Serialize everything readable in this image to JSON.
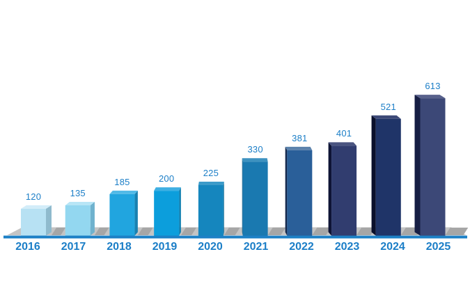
{
  "chart_data": {
    "type": "bar",
    "style": "3d-perspective-column",
    "title": "",
    "xlabel": "",
    "ylabel": "",
    "categories": [
      "2016",
      "2017",
      "2018",
      "2019",
      "2020",
      "2021",
      "2022",
      "2023",
      "2024",
      "2025"
    ],
    "values": [
      120,
      135,
      185,
      200,
      225,
      330,
      381,
      401,
      521,
      613
    ],
    "ylim": [
      0,
      650
    ],
    "grid": false,
    "legend": "none",
    "data_labels_shown": true,
    "label_color": "#1B7EC7",
    "tick_label_color": "#1B7EC7",
    "axis_line_color": "#1C80C6",
    "floor_color": "#C4C4C4",
    "shadow_color": "#A6A6A6",
    "background_color": "#FFFFFF",
    "bar_colors": [
      {
        "front": "#B7E1F3",
        "top": "#D3EDF9",
        "side": "#8FBACD"
      },
      {
        "front": "#93D7F0",
        "top": "#B7E5F6",
        "side": "#6FB2CE"
      },
      {
        "front": "#21A5DF",
        "top": "#52BAE7",
        "side": "#1981B1"
      },
      {
        "front": "#0C9EDC",
        "top": "#3EAFE3",
        "side": "#0A7CAF"
      },
      {
        "front": "#1586BE",
        "top": "#3C9BC9",
        "side": "#10688F"
      },
      {
        "front": "#1A79B0",
        "top": "#3D92C0",
        "side": "#135E88"
      },
      {
        "front": "#2A5F99",
        "top": "#5B82AC",
        "side": "#14294E"
      },
      {
        "front": "#313D6F",
        "top": "#4A5480",
        "side": "#0E1435"
      },
      {
        "front": "#1F3468",
        "top": "#3D4A78",
        "side": "#0A102C"
      },
      {
        "front": "#3C4877",
        "top": "#58618C",
        "side": "#161E44"
      }
    ]
  }
}
